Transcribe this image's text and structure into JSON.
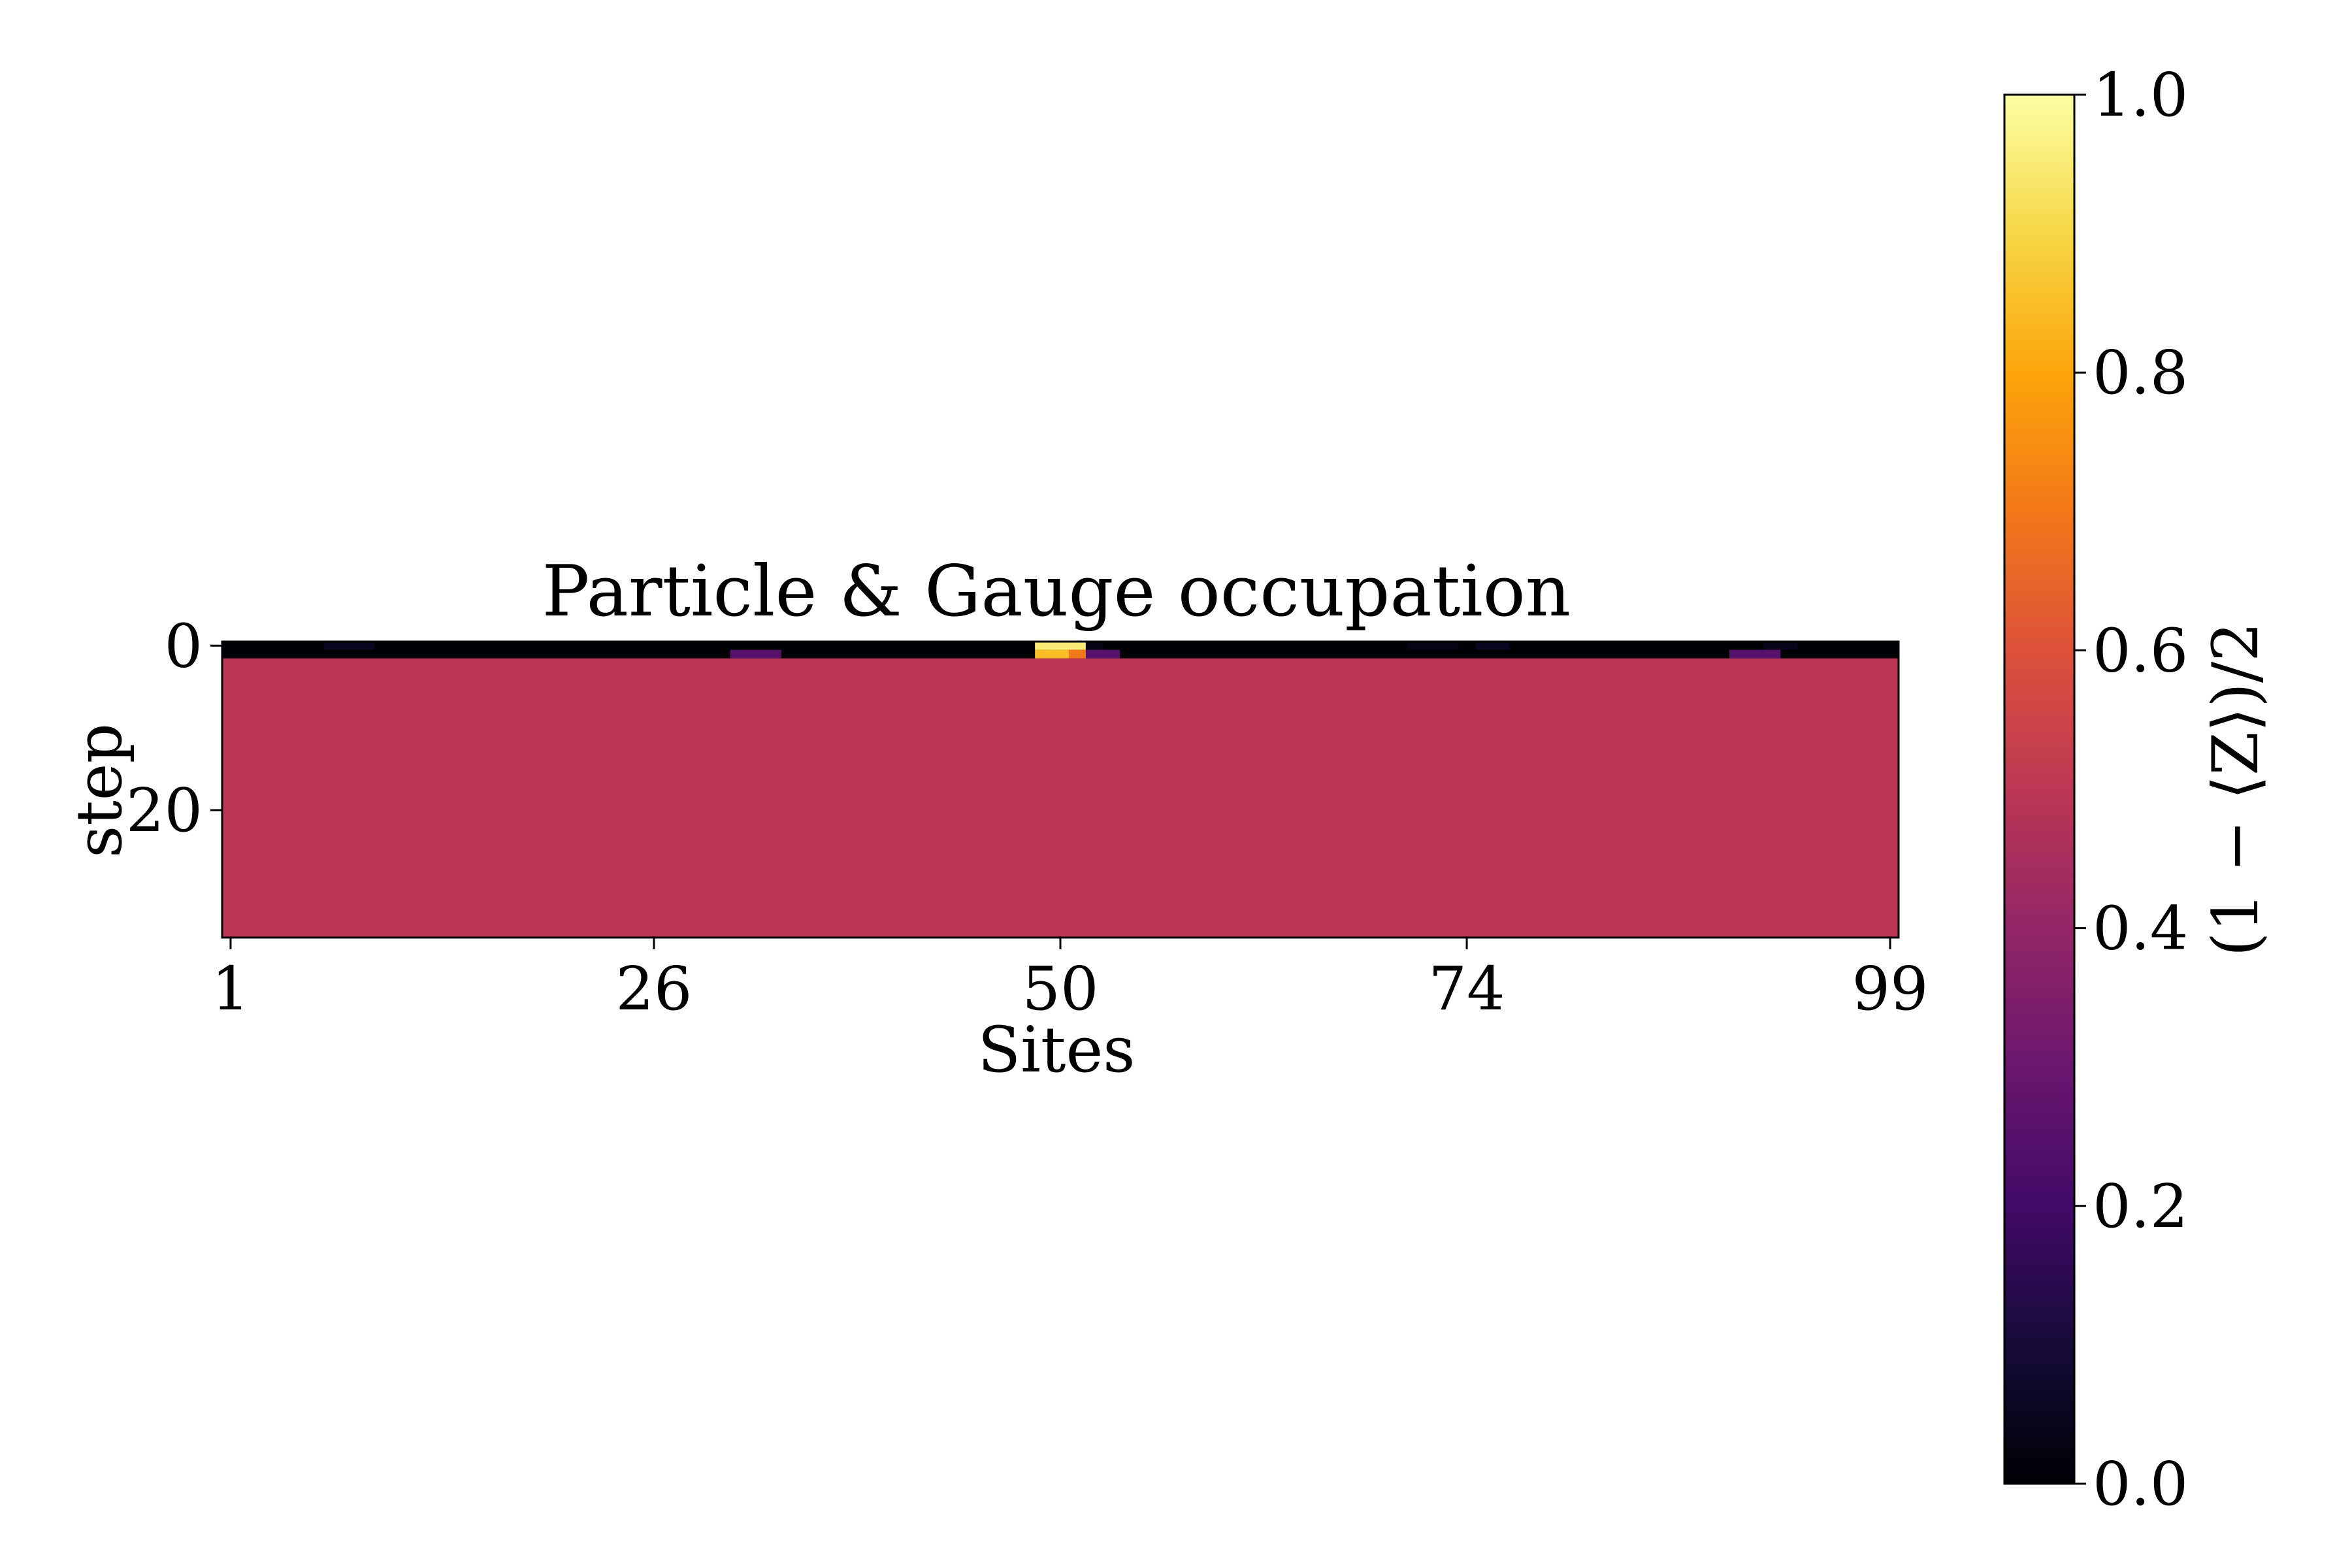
{
  "chart_data": {
    "type": "heatmap",
    "title": "Particle & Gauge occupation",
    "xlabel": "Sites",
    "ylabel": "step",
    "x_tick_labels": [
      "1",
      "26",
      "50",
      "74",
      "99"
    ],
    "x_tick_values": [
      1,
      26,
      50,
      74,
      99
    ],
    "y_tick_labels": [
      "0",
      "20"
    ],
    "y_tick_values": [
      0,
      20
    ],
    "x_range": [
      1,
      99
    ],
    "y_range": [
      0,
      35
    ],
    "colormap": "inferno",
    "color_range": [
      0.0,
      1.0
    ],
    "colorbar": {
      "label": "(1 − ⟨Z⟩)/2",
      "ticks": [
        0.0,
        0.2,
        0.4,
        0.6,
        0.8,
        1.0
      ],
      "tick_labels": [
        "0.0",
        "0.2",
        "0.4",
        "0.6",
        "0.8",
        "1.0"
      ]
    },
    "background_value": 0.5,
    "background_color": "#bc3754",
    "rows": [
      {
        "step": 0,
        "cells": [
          {
            "site": 7,
            "value": 0.05
          },
          {
            "site": 8,
            "value": 0.05
          },
          {
            "site": 9,
            "value": 0.05
          },
          {
            "site": 49,
            "value": 0.95
          },
          {
            "site": 50,
            "value": 0.95
          },
          {
            "site": 51,
            "value": 0.95
          },
          {
            "site": 52,
            "value": 0.03
          },
          {
            "site": 71,
            "value": 0.03
          },
          {
            "site": 72,
            "value": 0.03
          },
          {
            "site": 73,
            "value": 0.03
          },
          {
            "site": 75,
            "value": 0.05
          },
          {
            "site": 76,
            "value": 0.05
          },
          {
            "site": 92,
            "value": 0.04
          },
          {
            "site": 93,
            "value": 0.04
          }
        ]
      },
      {
        "step": 1,
        "cells": [
          {
            "site": 31,
            "value": 0.25
          },
          {
            "site": 32,
            "value": 0.25
          },
          {
            "site": 33,
            "value": 0.25
          },
          {
            "site": 49,
            "value": 0.85
          },
          {
            "site": 50,
            "value": 0.85
          },
          {
            "site": 51,
            "value": 0.7
          },
          {
            "site": 52,
            "value": 0.25
          },
          {
            "site": 53,
            "value": 0.25
          },
          {
            "site": 90,
            "value": 0.25
          },
          {
            "site": 91,
            "value": 0.25
          },
          {
            "site": 92,
            "value": 0.25
          }
        ]
      }
    ],
    "uniform_from_step": 2,
    "uniform_value": 0.5
  }
}
